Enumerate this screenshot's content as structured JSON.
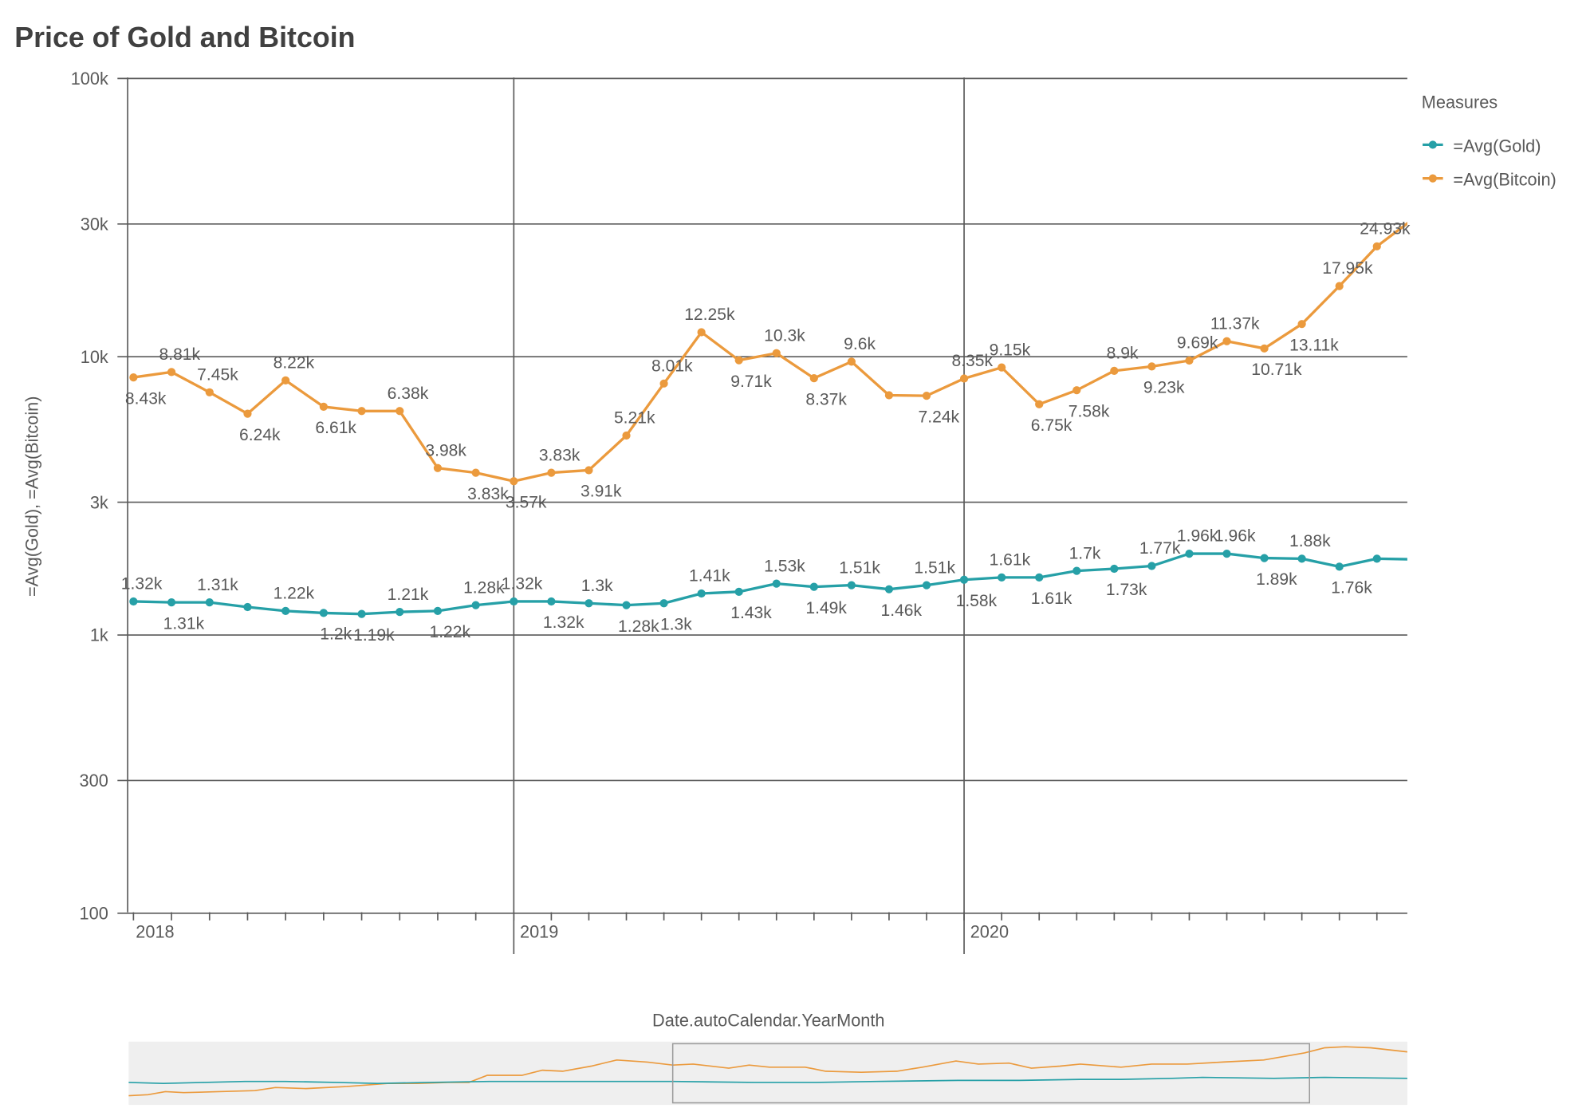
{
  "chart_data": {
    "type": "line",
    "title": "Price of Gold and Bitcoin",
    "xlabel": "Date.autoCalendar.YearMonth",
    "ylabel": "=Avg(Gold), =Avg(Bitcoin)",
    "yscale": "log",
    "ylim": [
      100,
      100000
    ],
    "y_ticks": [
      {
        "value": 100,
        "label": "100"
      },
      {
        "value": 300,
        "label": "300"
      },
      {
        "value": 1000,
        "label": "1k"
      },
      {
        "value": 3000,
        "label": "3k"
      },
      {
        "value": 10000,
        "label": "10k"
      },
      {
        "value": 30000,
        "label": "30k"
      },
      {
        "value": 100000,
        "label": "100k"
      }
    ],
    "x_year_labels": [
      {
        "month": "2018-03",
        "label": "2018"
      },
      {
        "month": "2019-01",
        "label": "2019"
      },
      {
        "month": "2020-01",
        "label": "2020"
      }
    ],
    "grid": true,
    "legend": {
      "title": "Measures",
      "placement": "right"
    },
    "x": [
      "2018-03",
      "2018-04",
      "2018-05",
      "2018-06",
      "2018-07",
      "2018-08",
      "2018-09",
      "2018-10",
      "2018-11",
      "2018-12",
      "2019-01",
      "2019-02",
      "2019-03",
      "2019-04",
      "2019-05",
      "2019-06",
      "2019-07",
      "2019-08",
      "2019-09",
      "2019-10",
      "2019-11",
      "2019-12",
      "2020-01",
      "2020-02",
      "2020-03",
      "2020-04",
      "2020-05",
      "2020-06",
      "2020-07",
      "2020-08",
      "2020-09",
      "2020-10",
      "2020-11",
      "2020-12",
      "2021-01"
    ],
    "series": [
      {
        "name": "=Avg(Gold)",
        "color": "#26a0a7",
        "values": [
          1320,
          1310,
          1310,
          1260,
          1220,
          1200,
          1190,
          1210,
          1220,
          1280,
          1320,
          1320,
          1300,
          1280,
          1300,
          1410,
          1430,
          1530,
          1490,
          1510,
          1460,
          1510,
          1580,
          1610,
          1610,
          1700,
          1730,
          1770,
          1960,
          1960,
          1890,
          1880,
          1760,
          1880,
          1870
        ],
        "labels": [
          "1.32k",
          "1.31k",
          "1.31k",
          null,
          "1.22k",
          "1.2k",
          "1.19k",
          "1.21k",
          "1.22k",
          "1.28k",
          "1.32k",
          "1.32k",
          "1.3k",
          "1.28k",
          "1.3k",
          "1.41k",
          "1.43k",
          "1.53k",
          "1.49k",
          "1.51k",
          "1.46k",
          "1.51k",
          "1.58k",
          "1.61k",
          "1.61k",
          "1.7k",
          "1.73k",
          "1.77k",
          "1.96k",
          "1.96k",
          "1.89k",
          "1.88k",
          "1.76k",
          null,
          null
        ]
      },
      {
        "name": "=Avg(Bitcoin)",
        "color": "#eb9a3d",
        "values": [
          8430,
          8810,
          7450,
          6240,
          8220,
          6610,
          6380,
          6380,
          3980,
          3830,
          3570,
          3830,
          3910,
          5210,
          8010,
          12250,
          9710,
          10300,
          8370,
          9600,
          7270,
          7240,
          8350,
          9150,
          6750,
          7580,
          8900,
          9230,
          9690,
          11370,
          10710,
          13110,
          17950,
          24930,
          31500
        ],
        "labels": [
          "8.43k",
          "8.81k",
          "7.45k",
          "6.24k",
          "8.22k",
          "6.61k",
          null,
          "6.38k",
          "3.98k",
          "3.83k",
          "3.57k",
          "3.83k",
          "3.91k",
          "5.21k",
          "8.01k",
          "12.25k",
          "9.71k",
          "10.3k",
          "8.37k",
          "9.6k",
          null,
          "7.24k",
          "8.35k",
          "9.15k",
          "6.75k",
          "7.58k",
          "8.9k",
          "9.23k",
          "9.69k",
          "11.37k",
          "10.71k",
          "13.11k",
          "17.95k",
          "24.93k",
          null
        ]
      }
    ]
  }
}
